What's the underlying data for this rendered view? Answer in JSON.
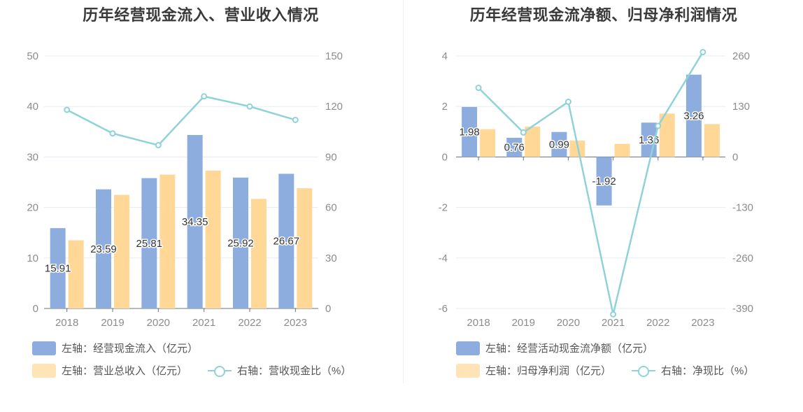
{
  "charts": [
    {
      "title": "历年经营现金流入、营业收入情况",
      "legend": {
        "s1": "左轴：经营现金流入（亿元）",
        "s2": "左轴：营业总收入（亿元）",
        "s3": "右轴：营收现金比（%）"
      }
    },
    {
      "title": "历年经营现金流净额、归母净利润情况",
      "legend": {
        "s1": "左轴：经营活动现金流净额（亿元）",
        "s2": "左轴：归母净利润（亿元）",
        "s3": "右轴：净现比（%）"
      }
    }
  ],
  "colors": {
    "bar_blue": "#8eaddf",
    "bar_orange": "#ffd898",
    "line_teal": "#8fd3d8",
    "grid": "#e6ebf5"
  },
  "chart_data": [
    {
      "type": "bar",
      "title": "历年经营现金流入、营业收入情况",
      "categories": [
        "2018",
        "2019",
        "2020",
        "2021",
        "2022",
        "2023"
      ],
      "y_left": {
        "min": 0,
        "max": 50,
        "ticks": [
          0,
          10,
          20,
          30,
          40,
          50
        ]
      },
      "y_right": {
        "min": 0,
        "max": 150,
        "ticks": [
          0,
          30,
          60,
          90,
          120,
          150
        ]
      },
      "grid": true,
      "legend_position": "bottom-left",
      "series": [
        {
          "name": "左轴：经营现金流入（亿元）",
          "axis": "left",
          "kind": "bar",
          "values": [
            15.91,
            23.59,
            25.81,
            34.35,
            25.92,
            26.67
          ],
          "labels": [
            "15.91",
            "23.59",
            "25.81",
            "34.35",
            "25.92",
            "26.67"
          ]
        },
        {
          "name": "左轴：营业总收入（亿元）",
          "axis": "left",
          "kind": "bar",
          "values": [
            13.5,
            22.5,
            26.5,
            27.3,
            21.7,
            23.8
          ]
        },
        {
          "name": "右轴：营收现金比（%）",
          "axis": "right",
          "kind": "line",
          "values": [
            118,
            104,
            97,
            126,
            120,
            112
          ]
        }
      ]
    },
    {
      "type": "bar",
      "title": "历年经营现金流净额、归母净利润情况",
      "categories": [
        "2018",
        "2019",
        "2020",
        "2021",
        "2022",
        "2023"
      ],
      "y_left": {
        "min": -6,
        "max": 4,
        "ticks": [
          -6,
          -4,
          -2,
          0,
          2,
          4
        ]
      },
      "y_right": {
        "min": -390,
        "max": 260,
        "ticks": [
          -390,
          -260,
          -130,
          0,
          130,
          260
        ]
      },
      "grid": true,
      "legend_position": "bottom-left",
      "series": [
        {
          "name": "左轴：经营活动现金流净额（亿元）",
          "axis": "left",
          "kind": "bar",
          "values": [
            1.98,
            0.76,
            0.99,
            -1.92,
            1.36,
            3.26
          ],
          "labels": [
            "1.98",
            "0.76",
            "0.99",
            "-1.92",
            "1.36",
            "3.26"
          ]
        },
        {
          "name": "左轴：归母净利润（亿元）",
          "axis": "left",
          "kind": "bar",
          "values": [
            1.1,
            1.2,
            0.65,
            0.52,
            1.72,
            1.3
          ]
        },
        {
          "name": "右轴：净现比（%）",
          "axis": "right",
          "kind": "line",
          "values": [
            178,
            63,
            142,
            -405,
            80,
            270
          ]
        }
      ]
    }
  ]
}
